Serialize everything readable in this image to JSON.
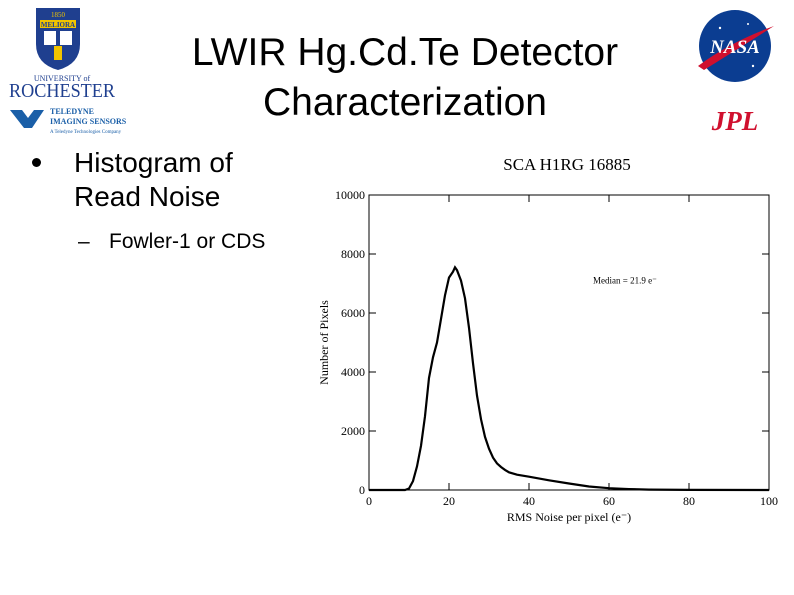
{
  "slide": {
    "title_line1": "LWIR Hg.Cd.Te Detector",
    "title_line2": "Characterization",
    "bullet_main_line1": "Histogram of",
    "bullet_main_line2": "Read Noise",
    "bullet_sub": "Fowler-1 or  CDS"
  },
  "logos": {
    "rochester_top": "1850",
    "rochester_motto": "MELIORA",
    "rochester_univ": "UNIVERSITY of",
    "rochester_name": "ROCHESTER",
    "teledyne_line1": "TELEDYNE",
    "teledyne_line2": "IMAGING SENSORS",
    "teledyne_line3": "A Teledyne Technologies Company",
    "nasa": "NASA",
    "jpl": "JPL"
  },
  "colors": {
    "rochester_blue": "#1f3f8f",
    "rochester_gold": "#f1c400",
    "teledyne_blue": "#1a5fa8",
    "nasa_blue": "#0b3d91",
    "nasa_red": "#d0102e",
    "jpl_red": "#d0102e"
  },
  "chart_data": {
    "type": "line",
    "title": "SCA H1RG 16885",
    "xlabel": "RMS Noise per pixel (e⁻)",
    "ylabel": "Number of Pixels",
    "annotation": "Median = 21.9 e⁻",
    "xlim": [
      0,
      100
    ],
    "ylim": [
      0,
      10000
    ],
    "xticks": [
      "0",
      "20",
      "40",
      "60",
      "80",
      "100"
    ],
    "yticks": [
      "0",
      "2000",
      "4000",
      "6000",
      "8000",
      "10000"
    ],
    "series": [
      {
        "x": [
          0,
          9,
          10,
          11,
          12,
          13,
          14,
          15,
          16,
          17,
          18,
          19,
          20,
          21,
          21.5,
          22,
          23,
          24,
          25,
          26,
          27,
          28,
          29,
          30,
          31,
          32,
          33,
          34,
          35,
          37,
          40,
          45,
          50,
          55,
          60,
          65,
          70,
          80,
          100
        ],
        "y": [
          0,
          0,
          50,
          300,
          800,
          1500,
          2500,
          3800,
          4500,
          5000,
          5800,
          6600,
          7200,
          7400,
          7550,
          7450,
          7100,
          6500,
          5500,
          4300,
          3200,
          2400,
          1800,
          1400,
          1100,
          900,
          780,
          680,
          600,
          520,
          450,
          330,
          220,
          120,
          60,
          30,
          15,
          5,
          0
        ]
      }
    ]
  }
}
